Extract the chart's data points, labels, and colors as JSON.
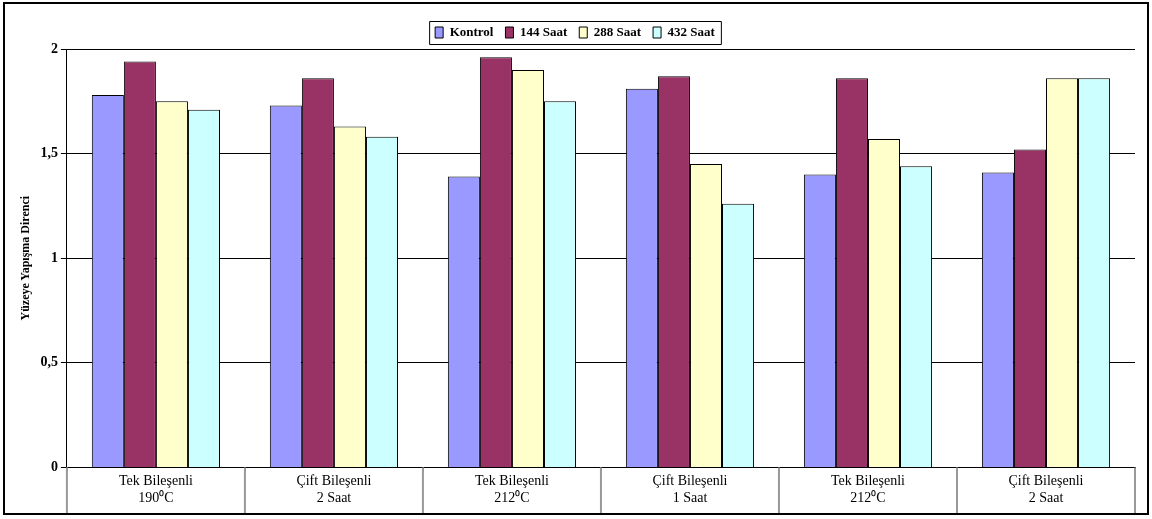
{
  "chart_data": {
    "type": "bar",
    "ylabel": "Yüzeye Yapışma Direnci",
    "categories": [
      "Tek Bileşenli\n190⁰C",
      "Çift Bileşenli\n2 Saat",
      "Tek Bileşenli\n212⁰C",
      "Çift Bileşenli\n1 Saat",
      "Tek Bileşenli\n212⁰C",
      "Çift Bileşenli\n2 Saat"
    ],
    "series": [
      {
        "name": "Kontrol",
        "color": "#9999ff",
        "values": [
          1.78,
          1.73,
          1.39,
          1.81,
          1.4,
          1.41
        ]
      },
      {
        "name": "144 Saat",
        "color": "#993366",
        "values": [
          1.94,
          1.86,
          1.96,
          1.87,
          1.86,
          1.52
        ]
      },
      {
        "name": "288 Saat",
        "color": "#ffffcc",
        "values": [
          1.75,
          1.63,
          1.9,
          1.45,
          1.57,
          1.86
        ]
      },
      {
        "name": "432 Saat",
        "color": "#ccffff",
        "values": [
          1.71,
          1.58,
          1.75,
          1.26,
          1.44,
          1.86
        ]
      }
    ],
    "ylim": [
      0,
      2
    ],
    "yticks": [
      0,
      {
        "value": 0.5,
        "label": "0,5"
      },
      1,
      {
        "value": 1.5,
        "label": "1,5"
      },
      2
    ],
    "grid": "y",
    "legend": "top"
  }
}
